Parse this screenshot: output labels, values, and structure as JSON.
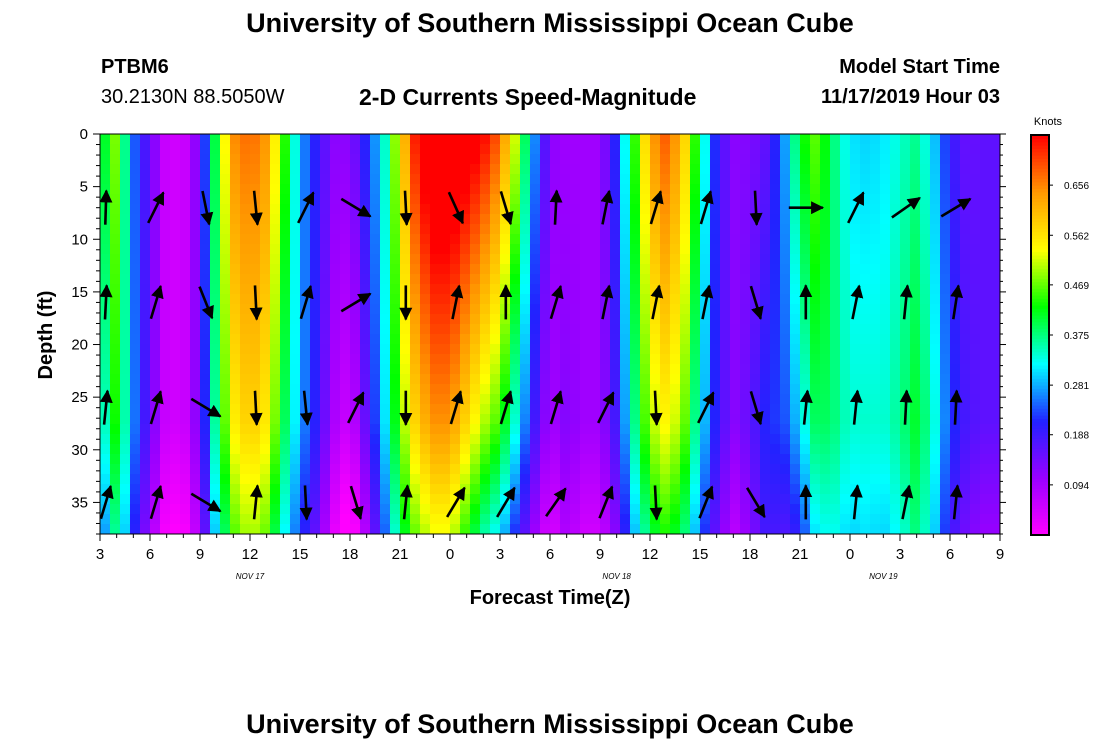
{
  "header": {
    "title": "University of Southern Mississippi Ocean Cube",
    "footer_title": "University of Southern Mississippi Ocean Cube",
    "station_id": "PTBM6",
    "station_coords": "30.2130N 88.5050W",
    "plot_title": "2-D Currents Speed-Magnitude",
    "start_label": "Model Start Time",
    "start_value": "11/17/2019 Hour 03"
  },
  "chart_data": {
    "type": "heatmap",
    "title": "2-D Currents Speed-Magnitude",
    "xlabel": "Forecast Time(Z)",
    "ylabel": "Depth (ft)",
    "x_hours": [
      0,
      54
    ],
    "x_ticks": [
      {
        "hour": 0,
        "label": "3"
      },
      {
        "hour": 3,
        "label": "6"
      },
      {
        "hour": 6,
        "label": "9"
      },
      {
        "hour": 9,
        "label": "12"
      },
      {
        "hour": 12,
        "label": "15"
      },
      {
        "hour": 15,
        "label": "18"
      },
      {
        "hour": 18,
        "label": "21"
      },
      {
        "hour": 21,
        "label": "0"
      },
      {
        "hour": 24,
        "label": "3"
      },
      {
        "hour": 27,
        "label": "6"
      },
      {
        "hour": 30,
        "label": "9"
      },
      {
        "hour": 33,
        "label": "12"
      },
      {
        "hour": 36,
        "label": "15"
      },
      {
        "hour": 39,
        "label": "18"
      },
      {
        "hour": 42,
        "label": "21"
      },
      {
        "hour": 45,
        "label": "0"
      },
      {
        "hour": 48,
        "label": "3"
      },
      {
        "hour": 51,
        "label": "6"
      },
      {
        "hour": 54,
        "label": "9"
      }
    ],
    "date_labels": [
      {
        "hour": 9,
        "label": "NOV 17"
      },
      {
        "hour": 31,
        "label": "NOV 18"
      },
      {
        "hour": 47,
        "label": "NOV 19"
      }
    ],
    "y_ticks": [
      0,
      5,
      10,
      15,
      20,
      25,
      30,
      35
    ],
    "ylim": [
      0,
      38
    ],
    "colorbar": {
      "unit": "Knots",
      "min": 0.0,
      "max": 0.75,
      "tick_values": [
        0.094,
        0.188,
        0.281,
        0.375,
        0.469,
        0.562,
        0.656
      ],
      "tick_labels": [
        "0.094",
        "0.188",
        "0.281",
        "0.375",
        "0.469",
        "0.562",
        "0.656"
      ],
      "colors": [
        "#ff00ff",
        "#9900ff",
        "#2222ff",
        "#00ffff",
        "#00ff00",
        "#ffff00",
        "#ff9900",
        "#ff0000"
      ]
    },
    "speed_profile_by_hour": [
      {
        "hour": 0,
        "s": 0.33,
        "d": 0.05
      },
      {
        "hour": 1,
        "s": 0.46,
        "d": 0.03
      },
      {
        "hour": 2,
        "s": 0.26,
        "d": -0.01
      },
      {
        "hour": 3,
        "s": 0.15,
        "d": 0.0
      },
      {
        "hour": 4,
        "s": 0.05,
        "d": 0.0
      },
      {
        "hour": 5,
        "s": 0.05,
        "d": 0.0
      },
      {
        "hour": 6,
        "s": 0.14,
        "d": 0.0
      },
      {
        "hour": 7,
        "s": 0.4,
        "d": 0.03
      },
      {
        "hour": 8,
        "s": 0.58,
        "d": 0.07
      },
      {
        "hour": 9,
        "s": 0.62,
        "d": 0.06
      },
      {
        "hour": 10,
        "s": 0.58,
        "d": 0.06
      },
      {
        "hour": 11,
        "s": 0.42,
        "d": 0.04
      },
      {
        "hour": 12,
        "s": 0.28,
        "d": 0.0
      },
      {
        "hour": 13,
        "s": 0.2,
        "d": 0.0
      },
      {
        "hour": 14,
        "s": 0.1,
        "d": 0.02
      },
      {
        "hour": 15,
        "s": 0.07,
        "d": 0.05
      },
      {
        "hour": 16,
        "s": 0.18,
        "d": 0.04
      },
      {
        "hour": 17,
        "s": 0.3,
        "d": 0.02
      },
      {
        "hour": 18,
        "s": 0.5,
        "d": 0.06
      },
      {
        "hour": 19,
        "s": 0.64,
        "d": 0.11
      },
      {
        "hour": 20,
        "s": 0.7,
        "d": 0.12
      },
      {
        "hour": 21,
        "s": 0.7,
        "d": 0.12
      },
      {
        "hour": 22,
        "s": 0.64,
        "d": 0.15
      },
      {
        "hour": 23,
        "s": 0.58,
        "d": 0.17
      },
      {
        "hour": 24,
        "s": 0.52,
        "d": 0.16
      },
      {
        "hour": 25,
        "s": 0.38,
        "d": 0.12
      },
      {
        "hour": 26,
        "s": 0.22,
        "d": 0.06
      },
      {
        "hour": 27,
        "s": 0.1,
        "d": 0.02
      },
      {
        "hour": 28,
        "s": 0.12,
        "d": -0.02
      },
      {
        "hour": 29,
        "s": 0.1,
        "d": 0.0
      },
      {
        "hour": 30,
        "s": 0.1,
        "d": 0.0
      },
      {
        "hour": 31,
        "s": 0.2,
        "d": 0.02
      },
      {
        "hour": 32,
        "s": 0.38,
        "d": 0.05
      },
      {
        "hour": 33,
        "s": 0.54,
        "d": 0.09
      },
      {
        "hour": 34,
        "s": 0.59,
        "d": 0.1
      },
      {
        "hour": 35,
        "s": 0.52,
        "d": 0.08
      },
      {
        "hour": 36,
        "s": 0.34,
        "d": 0.04
      },
      {
        "hour": 37,
        "s": 0.2,
        "d": 0.0
      },
      {
        "hour": 38,
        "s": 0.12,
        "d": 0.0
      },
      {
        "hour": 39,
        "s": 0.15,
        "d": -0.02
      },
      {
        "hour": 40,
        "s": 0.2,
        "d": -0.04
      },
      {
        "hour": 41,
        "s": 0.24,
        "d": 0.02
      },
      {
        "hour": 42,
        "s": 0.34,
        "d": 0.08
      },
      {
        "hour": 43,
        "s": 0.42,
        "d": 0.05
      },
      {
        "hour": 44,
        "s": 0.38,
        "d": 0.0
      },
      {
        "hour": 45,
        "s": 0.33,
        "d": -0.02
      },
      {
        "hour": 46,
        "s": 0.33,
        "d": -0.03
      },
      {
        "hour": 47,
        "s": 0.33,
        "d": -0.02
      },
      {
        "hour": 48,
        "s": 0.36,
        "d": -0.02
      },
      {
        "hour": 49,
        "s": 0.4,
        "d": -0.03
      },
      {
        "hour": 50,
        "s": 0.33,
        "d": -0.03
      },
      {
        "hour": 51,
        "s": 0.22,
        "d": -0.02
      },
      {
        "hour": 52,
        "s": 0.17,
        "d": -0.02
      },
      {
        "hour": 53,
        "s": 0.16,
        "d": 0.0
      },
      {
        "hour": 54,
        "s": 0.16,
        "d": 0.0
      }
    ],
    "current_vectors": [
      {
        "hour": 0,
        "depth": 7,
        "dx": 0.03,
        "dy": -1
      },
      {
        "hour": 3,
        "depth": 7,
        "dx": 0.5,
        "dy": -1
      },
      {
        "hour": 6,
        "depth": 7,
        "dx": 0.2,
        "dy": 1
      },
      {
        "hour": 9,
        "depth": 7,
        "dx": 0.1,
        "dy": 1
      },
      {
        "hour": 12,
        "depth": 7,
        "dx": 0.5,
        "dy": -1
      },
      {
        "hour": 15,
        "depth": 7,
        "dx": 1,
        "dy": 0.6
      },
      {
        "hour": 18,
        "depth": 7,
        "dx": 0.05,
        "dy": 1
      },
      {
        "hour": 21,
        "depth": 7,
        "dx": 0.45,
        "dy": 1
      },
      {
        "hour": 24,
        "depth": 7,
        "dx": 0.3,
        "dy": 1
      },
      {
        "hour": 27,
        "depth": 7,
        "dx": 0.05,
        "dy": -1
      },
      {
        "hour": 30,
        "depth": 7,
        "dx": 0.2,
        "dy": -1
      },
      {
        "hour": 33,
        "depth": 7,
        "dx": 0.3,
        "dy": -1
      },
      {
        "hour": 36,
        "depth": 7,
        "dx": 0.3,
        "dy": -1
      },
      {
        "hour": 39,
        "depth": 7,
        "dx": 0.05,
        "dy": 1
      },
      {
        "hour": 42,
        "depth": 7,
        "dx": 1,
        "dy": 0
      },
      {
        "hour": 45,
        "depth": 7,
        "dx": 0.5,
        "dy": -1
      },
      {
        "hour": 48,
        "depth": 7,
        "dx": 1,
        "dy": -0.7
      },
      {
        "hour": 51,
        "depth": 7,
        "dx": 1,
        "dy": -0.6
      },
      {
        "hour": 0,
        "depth": 16,
        "dx": 0.05,
        "dy": -1
      },
      {
        "hour": 3,
        "depth": 16,
        "dx": 0.3,
        "dy": -1
      },
      {
        "hour": 6,
        "depth": 16,
        "dx": 0.4,
        "dy": 1
      },
      {
        "hour": 9,
        "depth": 16,
        "dx": 0.05,
        "dy": 1
      },
      {
        "hour": 12,
        "depth": 16,
        "dx": 0.3,
        "dy": -1
      },
      {
        "hour": 15,
        "depth": 16,
        "dx": 1,
        "dy": -0.6
      },
      {
        "hour": 18,
        "depth": 16,
        "dx": 0.0,
        "dy": 1
      },
      {
        "hour": 21,
        "depth": 16,
        "dx": 0.2,
        "dy": -1
      },
      {
        "hour": 24,
        "depth": 16,
        "dx": 0.0,
        "dy": -1
      },
      {
        "hour": 27,
        "depth": 16,
        "dx": 0.3,
        "dy": -1
      },
      {
        "hour": 30,
        "depth": 16,
        "dx": 0.2,
        "dy": -1
      },
      {
        "hour": 33,
        "depth": 16,
        "dx": 0.2,
        "dy": -1
      },
      {
        "hour": 36,
        "depth": 16,
        "dx": 0.2,
        "dy": -1
      },
      {
        "hour": 39,
        "depth": 16,
        "dx": 0.3,
        "dy": 1
      },
      {
        "hour": 42,
        "depth": 16,
        "dx": 0.0,
        "dy": -1
      },
      {
        "hour": 45,
        "depth": 16,
        "dx": 0.2,
        "dy": -1
      },
      {
        "hour": 48,
        "depth": 16,
        "dx": 0.1,
        "dy": -1
      },
      {
        "hour": 51,
        "depth": 16,
        "dx": 0.15,
        "dy": -1
      },
      {
        "hour": 0,
        "depth": 26,
        "dx": 0.1,
        "dy": -1
      },
      {
        "hour": 3,
        "depth": 26,
        "dx": 0.3,
        "dy": -1
      },
      {
        "hour": 6,
        "depth": 26,
        "dx": 1,
        "dy": 0.6
      },
      {
        "hour": 9,
        "depth": 26,
        "dx": 0.05,
        "dy": 1
      },
      {
        "hour": 12,
        "depth": 26,
        "dx": 0.1,
        "dy": 1
      },
      {
        "hour": 15,
        "depth": 26,
        "dx": 0.5,
        "dy": -1
      },
      {
        "hour": 18,
        "depth": 26,
        "dx": 0.0,
        "dy": 1
      },
      {
        "hour": 21,
        "depth": 26,
        "dx": 0.3,
        "dy": -1
      },
      {
        "hour": 24,
        "depth": 26,
        "dx": 0.3,
        "dy": -1
      },
      {
        "hour": 27,
        "depth": 26,
        "dx": 0.3,
        "dy": -1
      },
      {
        "hour": 30,
        "depth": 26,
        "dx": 0.5,
        "dy": -1
      },
      {
        "hour": 33,
        "depth": 26,
        "dx": 0.05,
        "dy": 1
      },
      {
        "hour": 36,
        "depth": 26,
        "dx": 0.5,
        "dy": -1
      },
      {
        "hour": 39,
        "depth": 26,
        "dx": 0.3,
        "dy": 1
      },
      {
        "hour": 42,
        "depth": 26,
        "dx": 0.1,
        "dy": -1
      },
      {
        "hour": 45,
        "depth": 26,
        "dx": 0.1,
        "dy": -1
      },
      {
        "hour": 48,
        "depth": 26,
        "dx": 0.05,
        "dy": -1
      },
      {
        "hour": 51,
        "depth": 26,
        "dx": 0.05,
        "dy": -1
      },
      {
        "hour": 0,
        "depth": 35,
        "dx": 0.3,
        "dy": -1
      },
      {
        "hour": 3,
        "depth": 35,
        "dx": 0.3,
        "dy": -1
      },
      {
        "hour": 6,
        "depth": 35,
        "dx": 1,
        "dy": 0.6
      },
      {
        "hour": 9,
        "depth": 35,
        "dx": 0.1,
        "dy": -1
      },
      {
        "hour": 12,
        "depth": 35,
        "dx": 0.05,
        "dy": 1
      },
      {
        "hour": 15,
        "depth": 35,
        "dx": 0.3,
        "dy": 1
      },
      {
        "hour": 18,
        "depth": 35,
        "dx": 0.1,
        "dy": -1
      },
      {
        "hour": 21,
        "depth": 35,
        "dx": 0.6,
        "dy": -1
      },
      {
        "hour": 24,
        "depth": 35,
        "dx": 0.6,
        "dy": -1
      },
      {
        "hour": 27,
        "depth": 35,
        "dx": 0.7,
        "dy": -1
      },
      {
        "hour": 30,
        "depth": 35,
        "dx": 0.4,
        "dy": -1
      },
      {
        "hour": 33,
        "depth": 35,
        "dx": 0.05,
        "dy": 1
      },
      {
        "hour": 36,
        "depth": 35,
        "dx": 0.4,
        "dy": -1
      },
      {
        "hour": 39,
        "depth": 35,
        "dx": 0.6,
        "dy": 1
      },
      {
        "hour": 42,
        "depth": 35,
        "dx": 0.0,
        "dy": -1
      },
      {
        "hour": 45,
        "depth": 35,
        "dx": 0.1,
        "dy": -1
      },
      {
        "hour": 48,
        "depth": 35,
        "dx": 0.2,
        "dy": -1
      },
      {
        "hour": 51,
        "depth": 35,
        "dx": 0.1,
        "dy": -1
      }
    ]
  }
}
